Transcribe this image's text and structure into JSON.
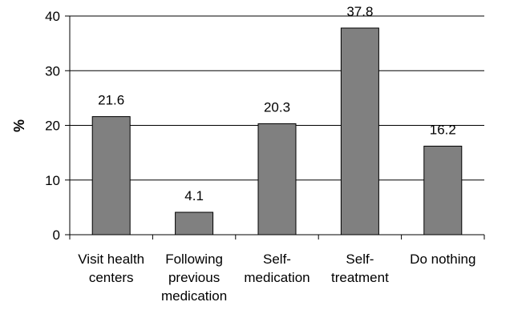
{
  "chart_data": {
    "type": "bar",
    "title": "",
    "xlabel": "",
    "ylabel": "%",
    "ylim": [
      0,
      40
    ],
    "yticks": [
      "0",
      "10",
      "20",
      "30",
      "40"
    ],
    "grid": true,
    "categories": [
      [
        "Visit health",
        "centers"
      ],
      [
        "Following",
        "previous",
        "medication"
      ],
      [
        "Self-",
        "medication"
      ],
      [
        "Self-",
        "treatment"
      ],
      [
        "Do nothing"
      ]
    ],
    "values": [
      21.6,
      4.1,
      20.3,
      37.8,
      16.2
    ],
    "data_labels": [
      "21.6",
      "4.1",
      "20.3",
      "37.8",
      "16.2"
    ],
    "bar_color": "#808080",
    "bar_border_color": "#000000",
    "gridline_color": "#000000"
  }
}
